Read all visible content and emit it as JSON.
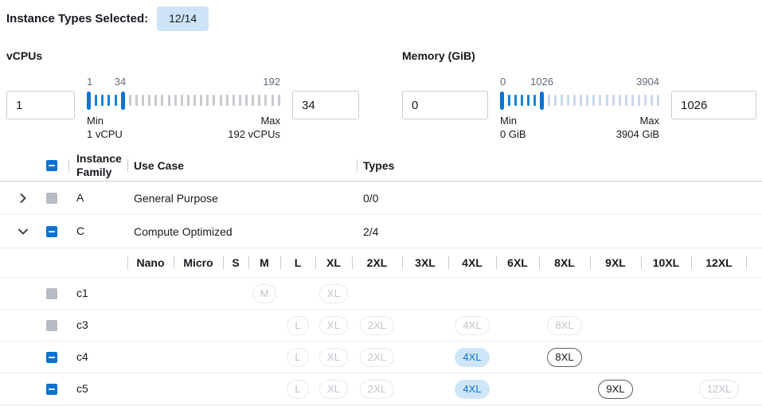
{
  "selected_summary": {
    "label": "Instance Types Selected:",
    "badge": "12/14"
  },
  "filters": [
    {
      "id": "vcpus",
      "title": "vCPUs",
      "min_value": "1",
      "max_value": "34",
      "slider": {
        "range_min": 1,
        "range_max": 192,
        "low": 1,
        "high": 34,
        "scale_labels": [
          "1",
          "34",
          "192"
        ],
        "min_caption": "Min",
        "min_sub": "1 vCPU",
        "max_caption": "Max",
        "max_sub": "192 vCPUs",
        "off_tick_color": "#c7cacf"
      }
    },
    {
      "id": "memory",
      "title": "Memory (GiB)",
      "min_value": "0",
      "max_value": "1026",
      "slider": {
        "range_min": 0,
        "range_max": 3904,
        "low": 0,
        "high": 1026,
        "scale_labels": [
          "0",
          "1026",
          "3904"
        ],
        "min_caption": "Min",
        "min_sub": "0 GiB",
        "max_caption": "Max",
        "max_sub": "3904 GiB",
        "off_tick_color": "#c9d8ec"
      }
    }
  ],
  "table": {
    "select_all_state": "indeterminate",
    "columns": [
      "Instance Family",
      "Use Case",
      "Types"
    ],
    "family_rows": [
      {
        "family": "A",
        "use_case": "General Purpose",
        "types": "0/0",
        "expanded": false,
        "checkbox": "disabled"
      },
      {
        "family": "C",
        "use_case": "Compute Optimized",
        "types": "2/4",
        "expanded": true,
        "checkbox": "indeterminate"
      }
    ],
    "size_columns": [
      "Nano",
      "Micro",
      "S",
      "M",
      "L",
      "XL",
      "2XL",
      "3XL",
      "4XL",
      "6XL",
      "8XL",
      "9XL",
      "10XL",
      "12XL"
    ],
    "instance_rows": [
      {
        "name": "c1",
        "checkbox": "disabled",
        "pills": [
          {
            "size": "M",
            "state": "disabled"
          },
          {
            "size": "XL",
            "state": "disabled"
          }
        ]
      },
      {
        "name": "c3",
        "checkbox": "disabled",
        "pills": [
          {
            "size": "L",
            "state": "disabled"
          },
          {
            "size": "XL",
            "state": "disabled"
          },
          {
            "size": "2XL",
            "state": "disabled"
          },
          {
            "size": "4XL",
            "state": "disabled"
          },
          {
            "size": "8XL",
            "state": "disabled"
          }
        ]
      },
      {
        "name": "c4",
        "checkbox": "indeterminate",
        "pills": [
          {
            "size": "L",
            "state": "disabled"
          },
          {
            "size": "XL",
            "state": "disabled"
          },
          {
            "size": "2XL",
            "state": "disabled"
          },
          {
            "size": "4XL",
            "state": "selected"
          },
          {
            "size": "8XL",
            "state": "enabled"
          }
        ]
      },
      {
        "name": "c5",
        "checkbox": "indeterminate",
        "pills": [
          {
            "size": "L",
            "state": "disabled"
          },
          {
            "size": "XL",
            "state": "disabled"
          },
          {
            "size": "2XL",
            "state": "disabled"
          },
          {
            "size": "4XL",
            "state": "selected"
          },
          {
            "size": "9XL",
            "state": "enabled"
          },
          {
            "size": "12XL",
            "state": "disabled"
          }
        ]
      }
    ]
  },
  "colors": {
    "accent": "#0972d3",
    "badge_bg": "#cde3f7",
    "selected_pill_bg": "#cfe6fa",
    "selected_pill_text": "#0972d3",
    "tick_on": "#1583dc",
    "disabled_gray": "#b7bcc3"
  }
}
